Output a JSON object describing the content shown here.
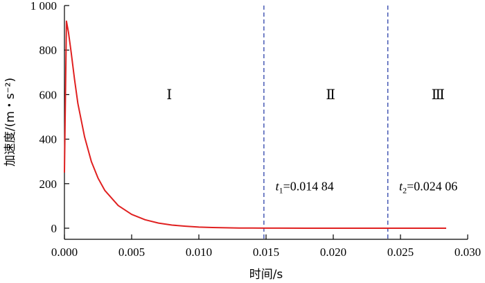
{
  "chart_data": {
    "type": "line",
    "xlabel": "时间/s",
    "ylabel": "加速度/(m・s⁻²)",
    "xlim": [
      0,
      0.03
    ],
    "ylim": [
      0,
      1000
    ],
    "x_ticks": [
      "0.000",
      "0.005",
      "0.010",
      "0.015",
      "0.020",
      "0.025",
      "0.030"
    ],
    "y_ticks": [
      "0",
      "200",
      "400",
      "600",
      "800",
      "1 000"
    ],
    "series": [
      {
        "color": "#e02020",
        "x": [
          0,
          0.00015,
          0.0003,
          0.0005,
          0.00075,
          0.001,
          0.0015,
          0.002,
          0.0025,
          0.003,
          0.004,
          0.005,
          0.006,
          0.007,
          0.008,
          0.009,
          0.01,
          0.011,
          0.012,
          0.013,
          0.014,
          0.015,
          0.016,
          0.018,
          0.02,
          0.022,
          0.024,
          0.026,
          0.0284
        ],
        "y": [
          250,
          930,
          880,
          790,
          670,
          560,
          410,
          300,
          225,
          170,
          102,
          62,
          38,
          23,
          14,
          9,
          5,
          3,
          2,
          1,
          0.6,
          0.3,
          0.2,
          0,
          0,
          0,
          0,
          0,
          0
        ]
      }
    ],
    "vlines": [
      {
        "x": 0.01484,
        "color": "#2a3fa8"
      },
      {
        "x": 0.02406,
        "color": "#2a3fa8"
      }
    ],
    "regions": [
      {
        "label": "Ⅰ",
        "x": 0.0078
      },
      {
        "label": "Ⅱ",
        "x": 0.0198
      },
      {
        "label": "Ⅲ",
        "x": 0.0278
      }
    ],
    "annotations": [
      {
        "var": "t",
        "sub": "1",
        "value": "=0.014 84",
        "x": 0.0157
      },
      {
        "var": "t",
        "sub": "2",
        "value": "=0.024 06",
        "x": 0.0249
      }
    ],
    "annotation_y": 170,
    "region_label_y": 580,
    "grid": false,
    "legend": "none"
  }
}
